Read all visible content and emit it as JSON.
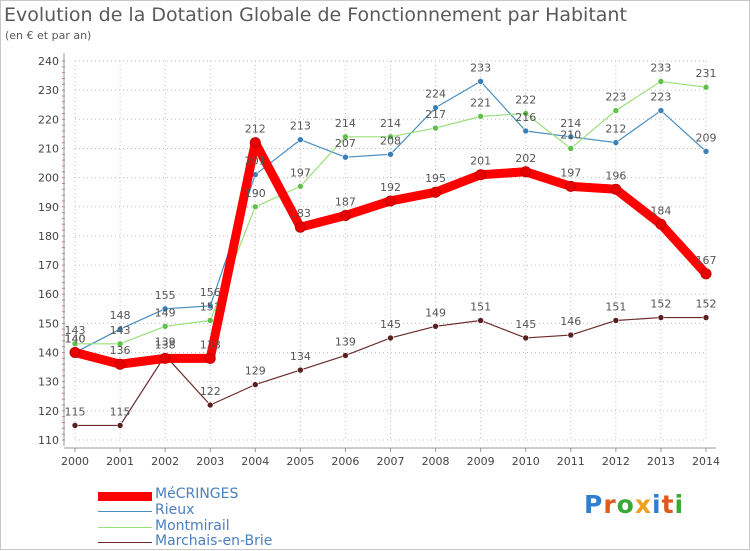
{
  "title": "Evolution de la Dotation Globale de Fonctionnement par Habitant",
  "subtitle": "(en € et par an)",
  "logo_text": "Proxiti",
  "chart_data": {
    "type": "line",
    "title": "Evolution de la Dotation Globale de Fonctionnement par Habitant",
    "ylabel": "(en € et par an)",
    "xlabel": "",
    "ylim": [
      110,
      240
    ],
    "y_ticks": [
      110,
      120,
      130,
      140,
      150,
      160,
      170,
      180,
      190,
      200,
      210,
      220,
      230,
      240
    ],
    "categories": [
      "2000",
      "2001",
      "2002",
      "2003",
      "2004",
      "2005",
      "2006",
      "2007",
      "2008",
      "2009",
      "2010",
      "2011",
      "2012",
      "2013",
      "2014"
    ],
    "series": [
      {
        "name": "Rieux",
        "color": "#4a8ec2",
        "marker": "#3a7fb8",
        "values": [
          140,
          148,
          155,
          156,
          201,
          213,
          207,
          208,
          224,
          233,
          216,
          214,
          212,
          223,
          209
        ]
      },
      {
        "name": "Montmirail",
        "color": "#99e07a",
        "marker": "#5ec24a",
        "values": [
          143,
          143,
          149,
          151,
          190,
          197,
          214,
          214,
          217,
          221,
          222,
          210,
          223,
          233,
          231
        ]
      },
      {
        "name": "Marchais-en-Brie",
        "color": "#6b2b2b",
        "marker": "#5a2020",
        "values": [
          115,
          115,
          139,
          122,
          129,
          134,
          139,
          145,
          149,
          151,
          145,
          146,
          151,
          152,
          152
        ]
      },
      {
        "name": "MéCRINGES",
        "color": "#ff0000",
        "marker": "#e80000",
        "values": [
          140,
          136,
          138,
          138,
          212,
          183,
          187,
          192,
          195,
          201,
          202,
          197,
          196,
          184,
          167
        ]
      }
    ],
    "legend": [
      "MéCRINGES",
      "Rieux",
      "Montmirail",
      "Marchais-en-Brie"
    ],
    "legend_position": "bottom-left",
    "grid": true
  }
}
